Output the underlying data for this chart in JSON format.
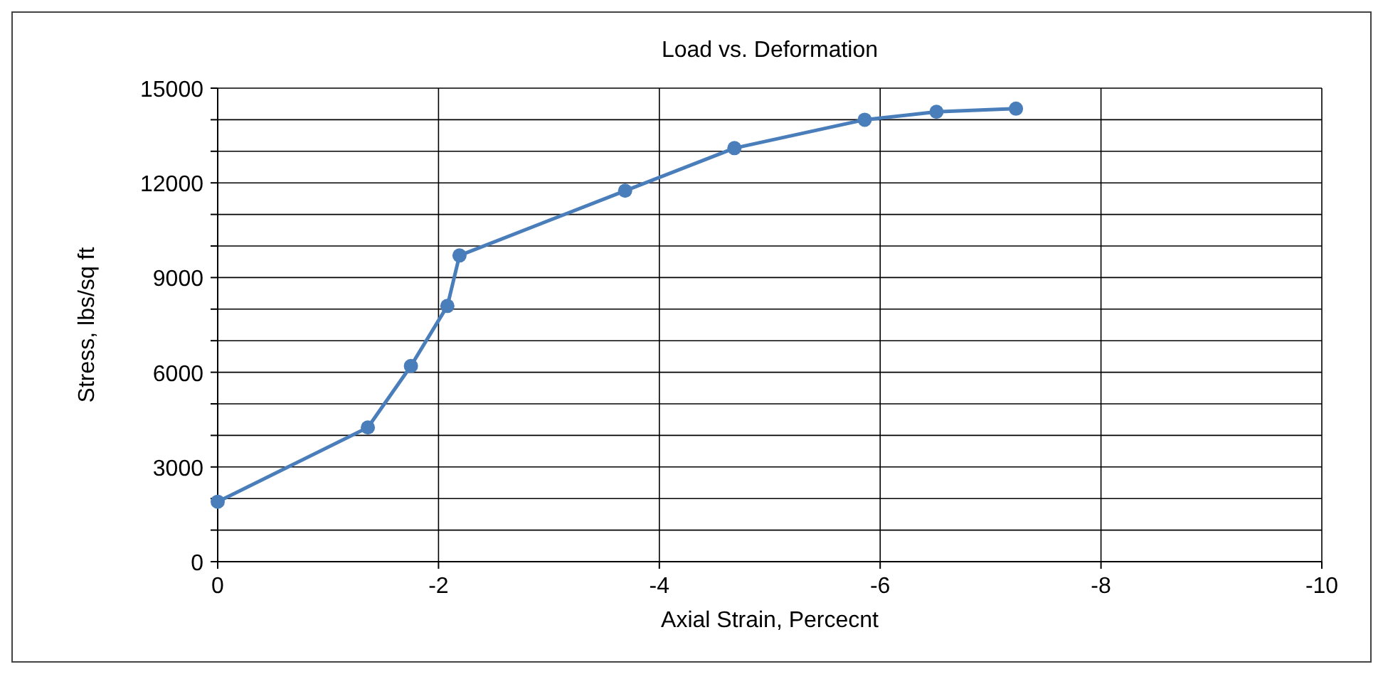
{
  "chart_data": {
    "type": "line",
    "title": "Load vs. Deformation",
    "xlabel": "Axial Strain, Percecnt",
    "ylabel": "Stress, lbs/sq ft",
    "x": [
      0,
      -1.36,
      -1.75,
      -2.08,
      -2.19,
      -3.69,
      -4.68,
      -5.86,
      -6.51,
      -7.23
    ],
    "series": [
      {
        "color": "#4a7ebb",
        "values": [
          1900,
          4250,
          6200,
          8100,
          9700,
          11750,
          13100,
          14000,
          14250,
          14350
        ]
      }
    ],
    "xlim": [
      0,
      -10
    ],
    "xticks": [
      0,
      -2,
      -4,
      -6,
      -8,
      -10
    ],
    "ylim": [
      0,
      15000
    ],
    "yticks": [
      0,
      {
        "value": 1000,
        "label": null
      },
      {
        "value": 2000,
        "label": null
      },
      3000,
      {
        "value": 4000,
        "label": null
      },
      {
        "value": 5000,
        "label": null
      },
      6000,
      {
        "value": 7000,
        "label": null
      },
      {
        "value": 8000,
        "label": null
      },
      9000,
      {
        "value": 10000,
        "label": null
      },
      {
        "value": 11000,
        "label": null
      },
      12000,
      {
        "value": 13000,
        "label": null
      },
      {
        "value": 14000,
        "label": null
      },
      15000
    ],
    "grid": true,
    "marker": "circle",
    "line_style": "solid"
  }
}
